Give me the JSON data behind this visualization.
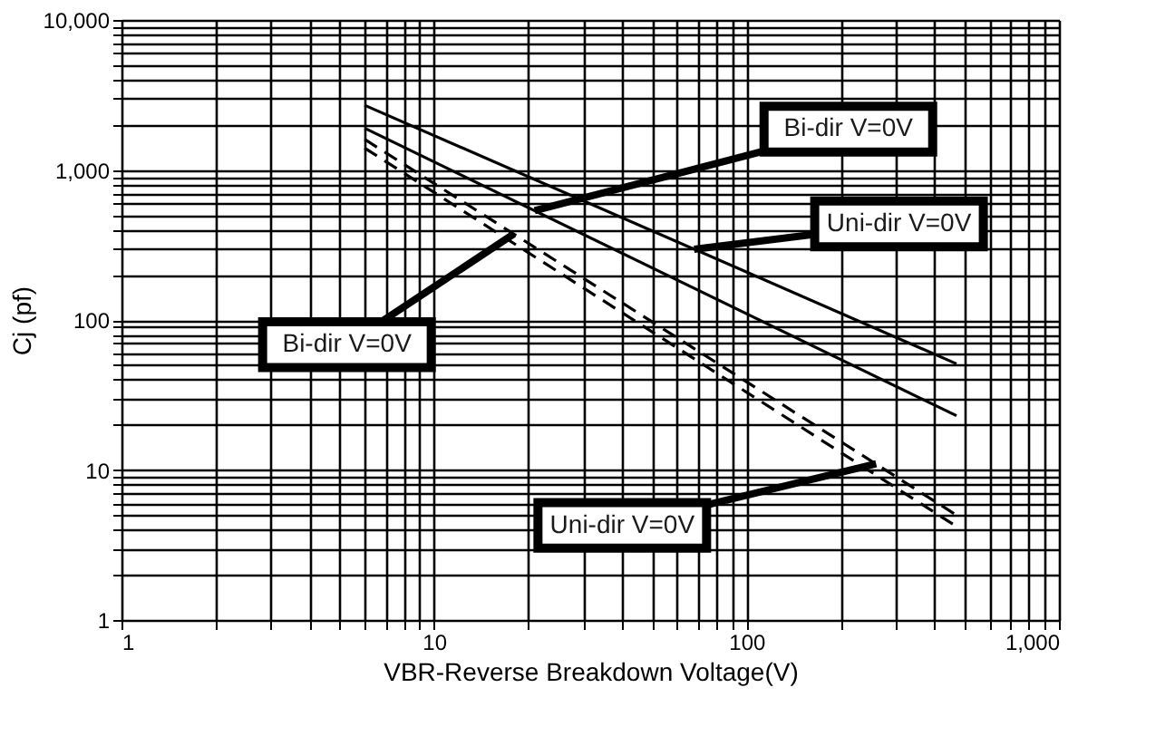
{
  "chart_data": {
    "type": "line",
    "xlabel": "VBR-Reverse Breakdown Voltage(V)",
    "ylabel": "Cj (pf)",
    "log": "xy",
    "grid": true,
    "xlim": [
      1,
      1000
    ],
    "ylim": [
      1,
      10000
    ],
    "xticks": [
      {
        "value": 1,
        "label": "1"
      },
      {
        "value": 2,
        "label": null
      },
      {
        "value": 3,
        "label": null
      },
      {
        "value": 4,
        "label": null
      },
      {
        "value": 5,
        "label": null
      },
      {
        "value": 6,
        "label": null
      },
      {
        "value": 7,
        "label": null
      },
      {
        "value": 8,
        "label": null
      },
      {
        "value": 9,
        "label": null
      },
      {
        "value": 10,
        "label": "10"
      },
      {
        "value": 20,
        "label": null
      },
      {
        "value": 30,
        "label": null
      },
      {
        "value": 40,
        "label": null
      },
      {
        "value": 50,
        "label": null
      },
      {
        "value": 60,
        "label": null
      },
      {
        "value": 70,
        "label": null
      },
      {
        "value": 80,
        "label": null
      },
      {
        "value": 90,
        "label": null
      },
      {
        "value": 100,
        "label": "100"
      },
      {
        "value": 200,
        "label": null
      },
      {
        "value": 300,
        "label": null
      },
      {
        "value": 400,
        "label": null
      },
      {
        "value": 500,
        "label": null
      },
      {
        "value": 600,
        "label": null
      },
      {
        "value": 700,
        "label": null
      },
      {
        "value": 800,
        "label": null
      },
      {
        "value": 900,
        "label": null
      },
      {
        "value": 1000,
        "label": "1,000"
      }
    ],
    "yticks": [
      {
        "value": 1,
        "label": "1"
      },
      {
        "value": 2,
        "label": null
      },
      {
        "value": 3,
        "label": null
      },
      {
        "value": 4,
        "label": null
      },
      {
        "value": 5,
        "label": null
      },
      {
        "value": 6,
        "label": null
      },
      {
        "value": 7,
        "label": null
      },
      {
        "value": 8,
        "label": null
      },
      {
        "value": 9,
        "label": null
      },
      {
        "value": 10,
        "label": "10"
      },
      {
        "value": 20,
        "label": null
      },
      {
        "value": 30,
        "label": null
      },
      {
        "value": 40,
        "label": null
      },
      {
        "value": 50,
        "label": null
      },
      {
        "value": 60,
        "label": null
      },
      {
        "value": 70,
        "label": null
      },
      {
        "value": 80,
        "label": null
      },
      {
        "value": 90,
        "label": null
      },
      {
        "value": 100,
        "label": "100"
      },
      {
        "value": 200,
        "label": null
      },
      {
        "value": 300,
        "label": null
      },
      {
        "value": 400,
        "label": null
      },
      {
        "value": 500,
        "label": null
      },
      {
        "value": 600,
        "label": null
      },
      {
        "value": 700,
        "label": null
      },
      {
        "value": 800,
        "label": null
      },
      {
        "value": 900,
        "label": null
      },
      {
        "value": 1000,
        "label": "1,000"
      },
      {
        "value": 2000,
        "label": null
      },
      {
        "value": 3000,
        "label": null
      },
      {
        "value": 4000,
        "label": null
      },
      {
        "value": 5000,
        "label": null
      },
      {
        "value": 6000,
        "label": null
      },
      {
        "value": 7000,
        "label": null
      },
      {
        "value": 8000,
        "label": null
      },
      {
        "value": 9000,
        "label": null
      },
      {
        "value": 10000,
        "label": "10,000"
      }
    ],
    "x": [
      6,
      470
    ],
    "series": [
      {
        "color": "#000000",
        "line_style": "solid",
        "values": [
          2700,
          51
        ]
      },
      {
        "color": "#000000",
        "line_style": "solid",
        "values": [
          1900,
          23
        ]
      },
      {
        "color": "#000000",
        "line_style": "dashed",
        "values": [
          1600,
          5
        ]
      },
      {
        "color": "#000000",
        "line_style": "dashed",
        "values": [
          1400,
          4.2
        ]
      }
    ],
    "annotations": [
      {
        "text": "Bi-dir V=0V",
        "x": 21,
        "y": 535
      },
      {
        "text": "Uni-dir V=0V",
        "x": 68,
        "y": 296
      },
      {
        "text": "Bi-dir V=0V",
        "x": 18,
        "y": 374
      },
      {
        "text": "Uni-dir V=0V",
        "x": 260,
        "y": 11
      }
    ]
  }
}
